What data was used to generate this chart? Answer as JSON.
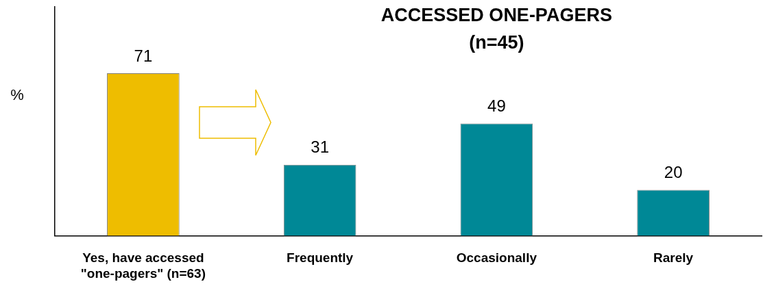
{
  "chart_data": {
    "type": "bar",
    "title": "ACCESSED ONE-PAGERS",
    "subtitle": "(n=45)",
    "ylabel": "%",
    "categories": [
      "Yes, have accessed \"one-pagers\" (n=63)",
      "Frequently",
      "Occasionally",
      "Rarely"
    ],
    "values": [
      71,
      31,
      49,
      20
    ],
    "colors": [
      "#eebd00",
      "#008896",
      "#008896",
      "#008896"
    ],
    "ylim": [
      0,
      100
    ],
    "tick_labels": "x",
    "data_labels": true,
    "grid": false,
    "legend": false
  }
}
